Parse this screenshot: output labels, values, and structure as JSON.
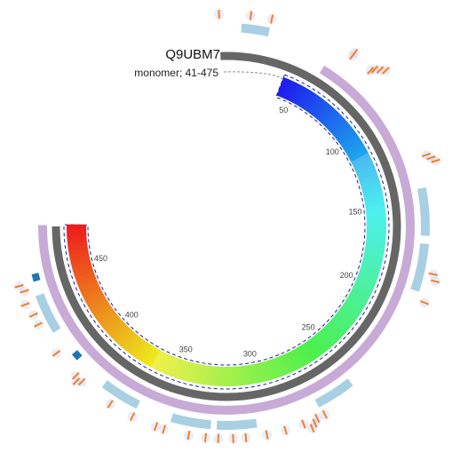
{
  "protein": {
    "accession": "Q9UBM7",
    "range_label": "monomer; 41-475",
    "length": 475,
    "start": 41,
    "end": 475
  },
  "scale": {
    "ticks": [
      "50",
      "100",
      "150",
      "200",
      "250",
      "300",
      "350",
      "400",
      "450"
    ],
    "tick_values": [
      50,
      100,
      150,
      200,
      250,
      300,
      350,
      400,
      450
    ]
  },
  "colors": {
    "sequence_track": "#666666",
    "topology_track": "#c8aad6",
    "region_track": "#a8cfe2",
    "site_marker": "#1f77b4",
    "variant_marker": "#f28022",
    "variant_halo": "#c7c9f0",
    "dash_border": "#1a1aa0",
    "connector": "#888888"
  },
  "tracks": {
    "topology": [
      {
        "start": 59,
        "end": 475
      }
    ],
    "regions": [
      {
        "start": 12,
        "end": 26
      },
      {
        "start": 142,
        "end": 166
      },
      {
        "start": 170,
        "end": 194
      },
      {
        "start": 251,
        "end": 271
      },
      {
        "start": 303,
        "end": 323
      },
      {
        "start": 326,
        "end": 346
      },
      {
        "start": 364,
        "end": 384
      },
      {
        "start": 420,
        "end": 440
      }
    ],
    "sites": [
      404,
      449
    ],
    "variants": [
      {
        "pos": 1,
        "level": 0
      },
      {
        "pos": 16,
        "level": 0
      },
      {
        "pos": 26,
        "level": 0
      },
      {
        "pos": 68,
        "level": 0
      },
      {
        "pos": 68,
        "level": 1
      },
      {
        "pos": 79,
        "level": 0
      },
      {
        "pos": 80,
        "level": 1
      },
      {
        "pos": 82,
        "level": 2
      },
      {
        "pos": 84,
        "level": 3
      },
      {
        "pos": 127,
        "level": 0
      },
      {
        "pos": 129,
        "level": 1
      },
      {
        "pos": 131,
        "level": 2
      },
      {
        "pos": 184,
        "level": 0
      },
      {
        "pos": 187,
        "level": 1
      },
      {
        "pos": 198,
        "level": 0
      },
      {
        "pos": 270,
        "level": 0
      },
      {
        "pos": 274,
        "level": 0
      },
      {
        "pos": 276,
        "level": 1
      },
      {
        "pos": 278,
        "level": 2
      },
      {
        "pos": 281,
        "level": 0
      },
      {
        "pos": 290,
        "level": 0
      },
      {
        "pos": 299,
        "level": 0
      },
      {
        "pos": 309,
        "level": 0
      },
      {
        "pos": 315,
        "level": 0
      },
      {
        "pos": 322,
        "level": 0
      },
      {
        "pos": 328,
        "level": 0
      },
      {
        "pos": 336,
        "level": 0
      },
      {
        "pos": 348,
        "level": 0
      },
      {
        "pos": 352,
        "level": 0
      },
      {
        "pos": 364,
        "level": 0
      },
      {
        "pos": 376,
        "level": 0
      },
      {
        "pos": 393,
        "level": 0
      },
      {
        "pos": 395,
        "level": 1
      },
      {
        "pos": 397,
        "level": 0
      },
      {
        "pos": 411,
        "level": 0
      },
      {
        "pos": 427,
        "level": 0
      },
      {
        "pos": 432,
        "level": 0
      },
      {
        "pos": 438,
        "level": 1
      },
      {
        "pos": 444,
        "level": 0
      },
      {
        "pos": 447,
        "level": 1
      }
    ]
  }
}
